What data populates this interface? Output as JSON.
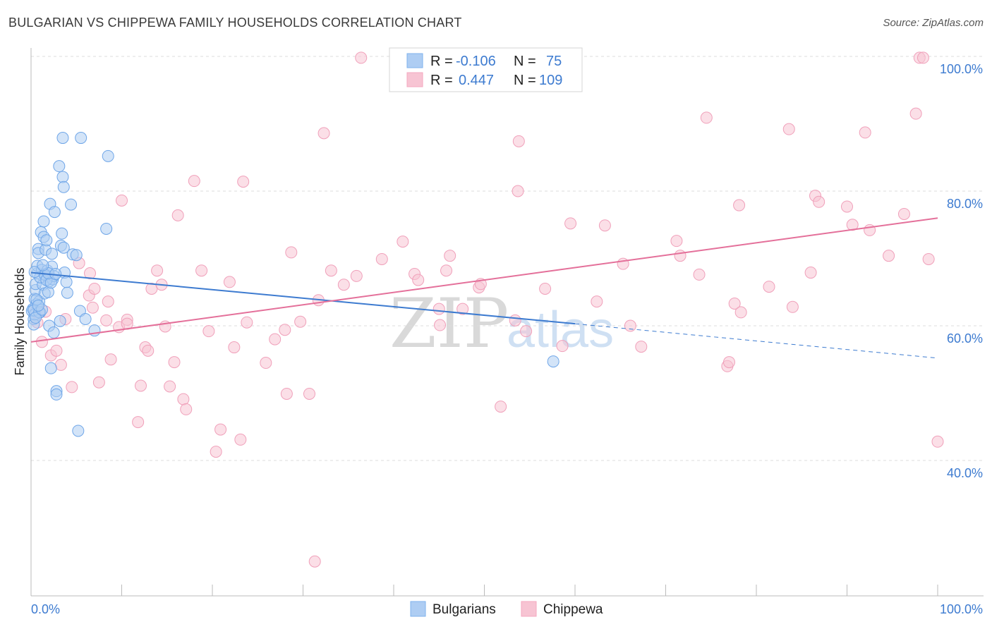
{
  "title": "BULGARIAN VS CHIPPEWA FAMILY HOUSEHOLDS CORRELATION CHART",
  "source": "Source: ZipAtlas.com",
  "watermark": {
    "zip": "ZIP",
    "atlas": "atlas"
  },
  "legend": {
    "r_label": "R =",
    "n_label": "N =",
    "rows": [
      {
        "name": "Bulgarians",
        "r": "-0.106",
        "n": "75",
        "color": "#7fb2ee"
      },
      {
        "name": "Chippewa",
        "r": "0.447",
        "n": "109",
        "color": "#f4a7bf"
      }
    ]
  },
  "colors": {
    "blue": "#3d7bd0",
    "blue_fill": "#aecdf3",
    "pink": "#e4709a",
    "pink_fill": "#f7c4d3",
    "grid": "#dddddd"
  },
  "chart_data": {
    "type": "scatter",
    "title": "BULGARIAN VS CHIPPEWA FAMILY HOUSEHOLDS CORRELATION CHART",
    "xlabel": "",
    "ylabel": "Family Households",
    "xlim": [
      0,
      100
    ],
    "ylim": [
      20,
      102
    ],
    "x_tick_labels": [
      {
        "value": 0,
        "label": "0.0%"
      },
      {
        "value": 100,
        "label": "100.0%"
      }
    ],
    "y_tick_labels": [
      {
        "value": 100,
        "label": "100.0%"
      },
      {
        "value": 80,
        "label": "80.0%"
      },
      {
        "value": 60,
        "label": "60.0%"
      },
      {
        "value": 40,
        "label": "40.0%"
      }
    ],
    "series": [
      {
        "name": "Bulgarians",
        "trend": {
          "x0": 0,
          "y0": 67.9,
          "x1": 60,
          "y1": 60.3,
          "dash_x1": 100,
          "dash_y1": 55.2
        },
        "points": [
          [
            0.2,
            62.5
          ],
          [
            0.3,
            61.0
          ],
          [
            0.3,
            60.2
          ],
          [
            0.4,
            64.0
          ],
          [
            0.5,
            65.3
          ],
          [
            0.5,
            66.2
          ],
          [
            0.6,
            63.2
          ],
          [
            0.7,
            67.8
          ],
          [
            0.7,
            68.9
          ],
          [
            0.8,
            71.4
          ],
          [
            0.8,
            70.8
          ],
          [
            0.9,
            63.6
          ],
          [
            1.0,
            62.0
          ],
          [
            1.1,
            73.9
          ],
          [
            1.2,
            68.3
          ],
          [
            1.3,
            66.1
          ],
          [
            1.4,
            75.5
          ],
          [
            1.4,
            73.2
          ],
          [
            1.5,
            64.8
          ],
          [
            1.6,
            67.6
          ],
          [
            1.6,
            71.3
          ],
          [
            1.7,
            72.7
          ],
          [
            1.8,
            68.2
          ],
          [
            1.8,
            67.3
          ],
          [
            1.9,
            65.0
          ],
          [
            2.0,
            66.6
          ],
          [
            2.0,
            60.0
          ],
          [
            2.1,
            78.1
          ],
          [
            2.2,
            53.7
          ],
          [
            2.3,
            70.7
          ],
          [
            2.3,
            68.8
          ],
          [
            2.4,
            66.9
          ],
          [
            2.5,
            59.0
          ],
          [
            2.5,
            67.4
          ],
          [
            2.6,
            76.9
          ],
          [
            2.8,
            50.3
          ],
          [
            2.8,
            49.8
          ],
          [
            3.1,
            83.7
          ],
          [
            3.2,
            60.7
          ],
          [
            3.3,
            71.9
          ],
          [
            3.4,
            73.7
          ],
          [
            3.5,
            82.1
          ],
          [
            3.6,
            80.6
          ],
          [
            3.6,
            71.6
          ],
          [
            3.5,
            87.9
          ],
          [
            3.7,
            67.9
          ],
          [
            3.9,
            66.5
          ],
          [
            4.0,
            64.9
          ],
          [
            4.4,
            78.0
          ],
          [
            4.6,
            70.6
          ],
          [
            5.0,
            70.5
          ],
          [
            5.2,
            44.4
          ],
          [
            5.4,
            62.2
          ],
          [
            5.5,
            87.9
          ],
          [
            6.0,
            61.0
          ],
          [
            7.0,
            59.3
          ],
          [
            8.5,
            85.2
          ],
          [
            8.3,
            74.4
          ],
          [
            0.1,
            62.2
          ],
          [
            0.4,
            61.7
          ],
          [
            1.0,
            67.2
          ],
          [
            0.6,
            63.9
          ],
          [
            57.6,
            54.7
          ],
          [
            0.3,
            62.3
          ],
          [
            1.5,
            67.6
          ],
          [
            0.9,
            62.0
          ],
          [
            1.7,
            66.8
          ],
          [
            0.5,
            61.2
          ],
          [
            2.2,
            66.4
          ],
          [
            1.2,
            62.4
          ],
          [
            0.8,
            63.0
          ],
          [
            1.9,
            67.8
          ],
          [
            2.7,
            67.7
          ],
          [
            0.4,
            68.0
          ],
          [
            1.3,
            69.0
          ]
        ]
      },
      {
        "name": "Chippewa",
        "trend": {
          "x0": 0,
          "y0": 57.6,
          "x1": 100,
          "y1": 76.0
        },
        "points": [
          [
            0.5,
            62.1
          ],
          [
            0.7,
            60.5
          ],
          [
            1.2,
            57.6
          ],
          [
            1.6,
            62.1
          ],
          [
            2.2,
            55.6
          ],
          [
            2.8,
            56.3
          ],
          [
            3.3,
            54.2
          ],
          [
            3.8,
            61.0
          ],
          [
            4.5,
            50.9
          ],
          [
            5.3,
            69.3
          ],
          [
            6.4,
            64.5
          ],
          [
            6.8,
            62.7
          ],
          [
            6.5,
            67.8
          ],
          [
            7.0,
            65.5
          ],
          [
            7.5,
            51.6
          ],
          [
            8.3,
            60.8
          ],
          [
            8.5,
            63.6
          ],
          [
            8.8,
            55.0
          ],
          [
            9.7,
            59.8
          ],
          [
            10.0,
            78.6
          ],
          [
            10.6,
            60.9
          ],
          [
            10.6,
            60.3
          ],
          [
            11.8,
            45.7
          ],
          [
            12.1,
            51.1
          ],
          [
            12.6,
            56.8
          ],
          [
            12.9,
            56.3
          ],
          [
            13.3,
            65.5
          ],
          [
            13.9,
            68.2
          ],
          [
            14.4,
            66.1
          ],
          [
            14.8,
            59.9
          ],
          [
            15.3,
            51.0
          ],
          [
            15.8,
            54.6
          ],
          [
            16.2,
            76.4
          ],
          [
            16.8,
            49.1
          ],
          [
            17.1,
            47.6
          ],
          [
            18.0,
            81.5
          ],
          [
            18.8,
            68.2
          ],
          [
            19.6,
            59.2
          ],
          [
            20.4,
            41.3
          ],
          [
            20.9,
            44.6
          ],
          [
            21.9,
            66.5
          ],
          [
            22.4,
            56.8
          ],
          [
            23.1,
            43.1
          ],
          [
            23.4,
            81.4
          ],
          [
            23.8,
            60.5
          ],
          [
            25.9,
            54.5
          ],
          [
            26.9,
            58.0
          ],
          [
            28.0,
            59.4
          ],
          [
            28.2,
            49.9
          ],
          [
            28.7,
            70.9
          ],
          [
            29.7,
            60.6
          ],
          [
            30.7,
            49.9
          ],
          [
            31.3,
            25.0
          ],
          [
            31.7,
            63.8
          ],
          [
            32.3,
            88.6
          ],
          [
            33.1,
            68.2
          ],
          [
            34.5,
            66.1
          ],
          [
            35.9,
            67.4
          ],
          [
            36.4,
            99.8
          ],
          [
            38.7,
            69.9
          ],
          [
            41.0,
            72.5
          ],
          [
            42.3,
            67.7
          ],
          [
            42.7,
            66.8
          ],
          [
            45.0,
            62.5
          ],
          [
            45.1,
            60.1
          ],
          [
            45.8,
            68.2
          ],
          [
            46.2,
            70.4
          ],
          [
            47.6,
            62.5
          ],
          [
            49.4,
            65.7
          ],
          [
            49.6,
            66.2
          ],
          [
            51.8,
            48.0
          ],
          [
            53.4,
            60.8
          ],
          [
            53.7,
            80.0
          ],
          [
            53.8,
            87.4
          ],
          [
            54.6,
            59.2
          ],
          [
            56.7,
            65.5
          ],
          [
            58.6,
            57.0
          ],
          [
            59.5,
            75.2
          ],
          [
            62.4,
            63.6
          ],
          [
            63.3,
            74.9
          ],
          [
            65.3,
            69.2
          ],
          [
            66.1,
            60.0
          ],
          [
            67.3,
            56.9
          ],
          [
            71.2,
            72.6
          ],
          [
            71.6,
            70.4
          ],
          [
            73.7,
            67.6
          ],
          [
            74.5,
            90.9
          ],
          [
            76.8,
            54.0
          ],
          [
            77.0,
            54.6
          ],
          [
            77.6,
            63.3
          ],
          [
            78.1,
            77.9
          ],
          [
            78.3,
            62.0
          ],
          [
            81.4,
            65.8
          ],
          [
            83.6,
            89.2
          ],
          [
            84.0,
            62.8
          ],
          [
            86.0,
            67.9
          ],
          [
            86.5,
            79.3
          ],
          [
            86.9,
            78.4
          ],
          [
            90.0,
            77.7
          ],
          [
            90.6,
            75.0
          ],
          [
            92.0,
            88.7
          ],
          [
            92.5,
            74.2
          ],
          [
            94.6,
            70.4
          ],
          [
            96.3,
            76.6
          ],
          [
            97.6,
            91.5
          ],
          [
            98.0,
            99.8
          ],
          [
            98.4,
            99.8
          ],
          [
            99.0,
            69.9
          ],
          [
            100.0,
            42.8
          ]
        ]
      }
    ]
  }
}
